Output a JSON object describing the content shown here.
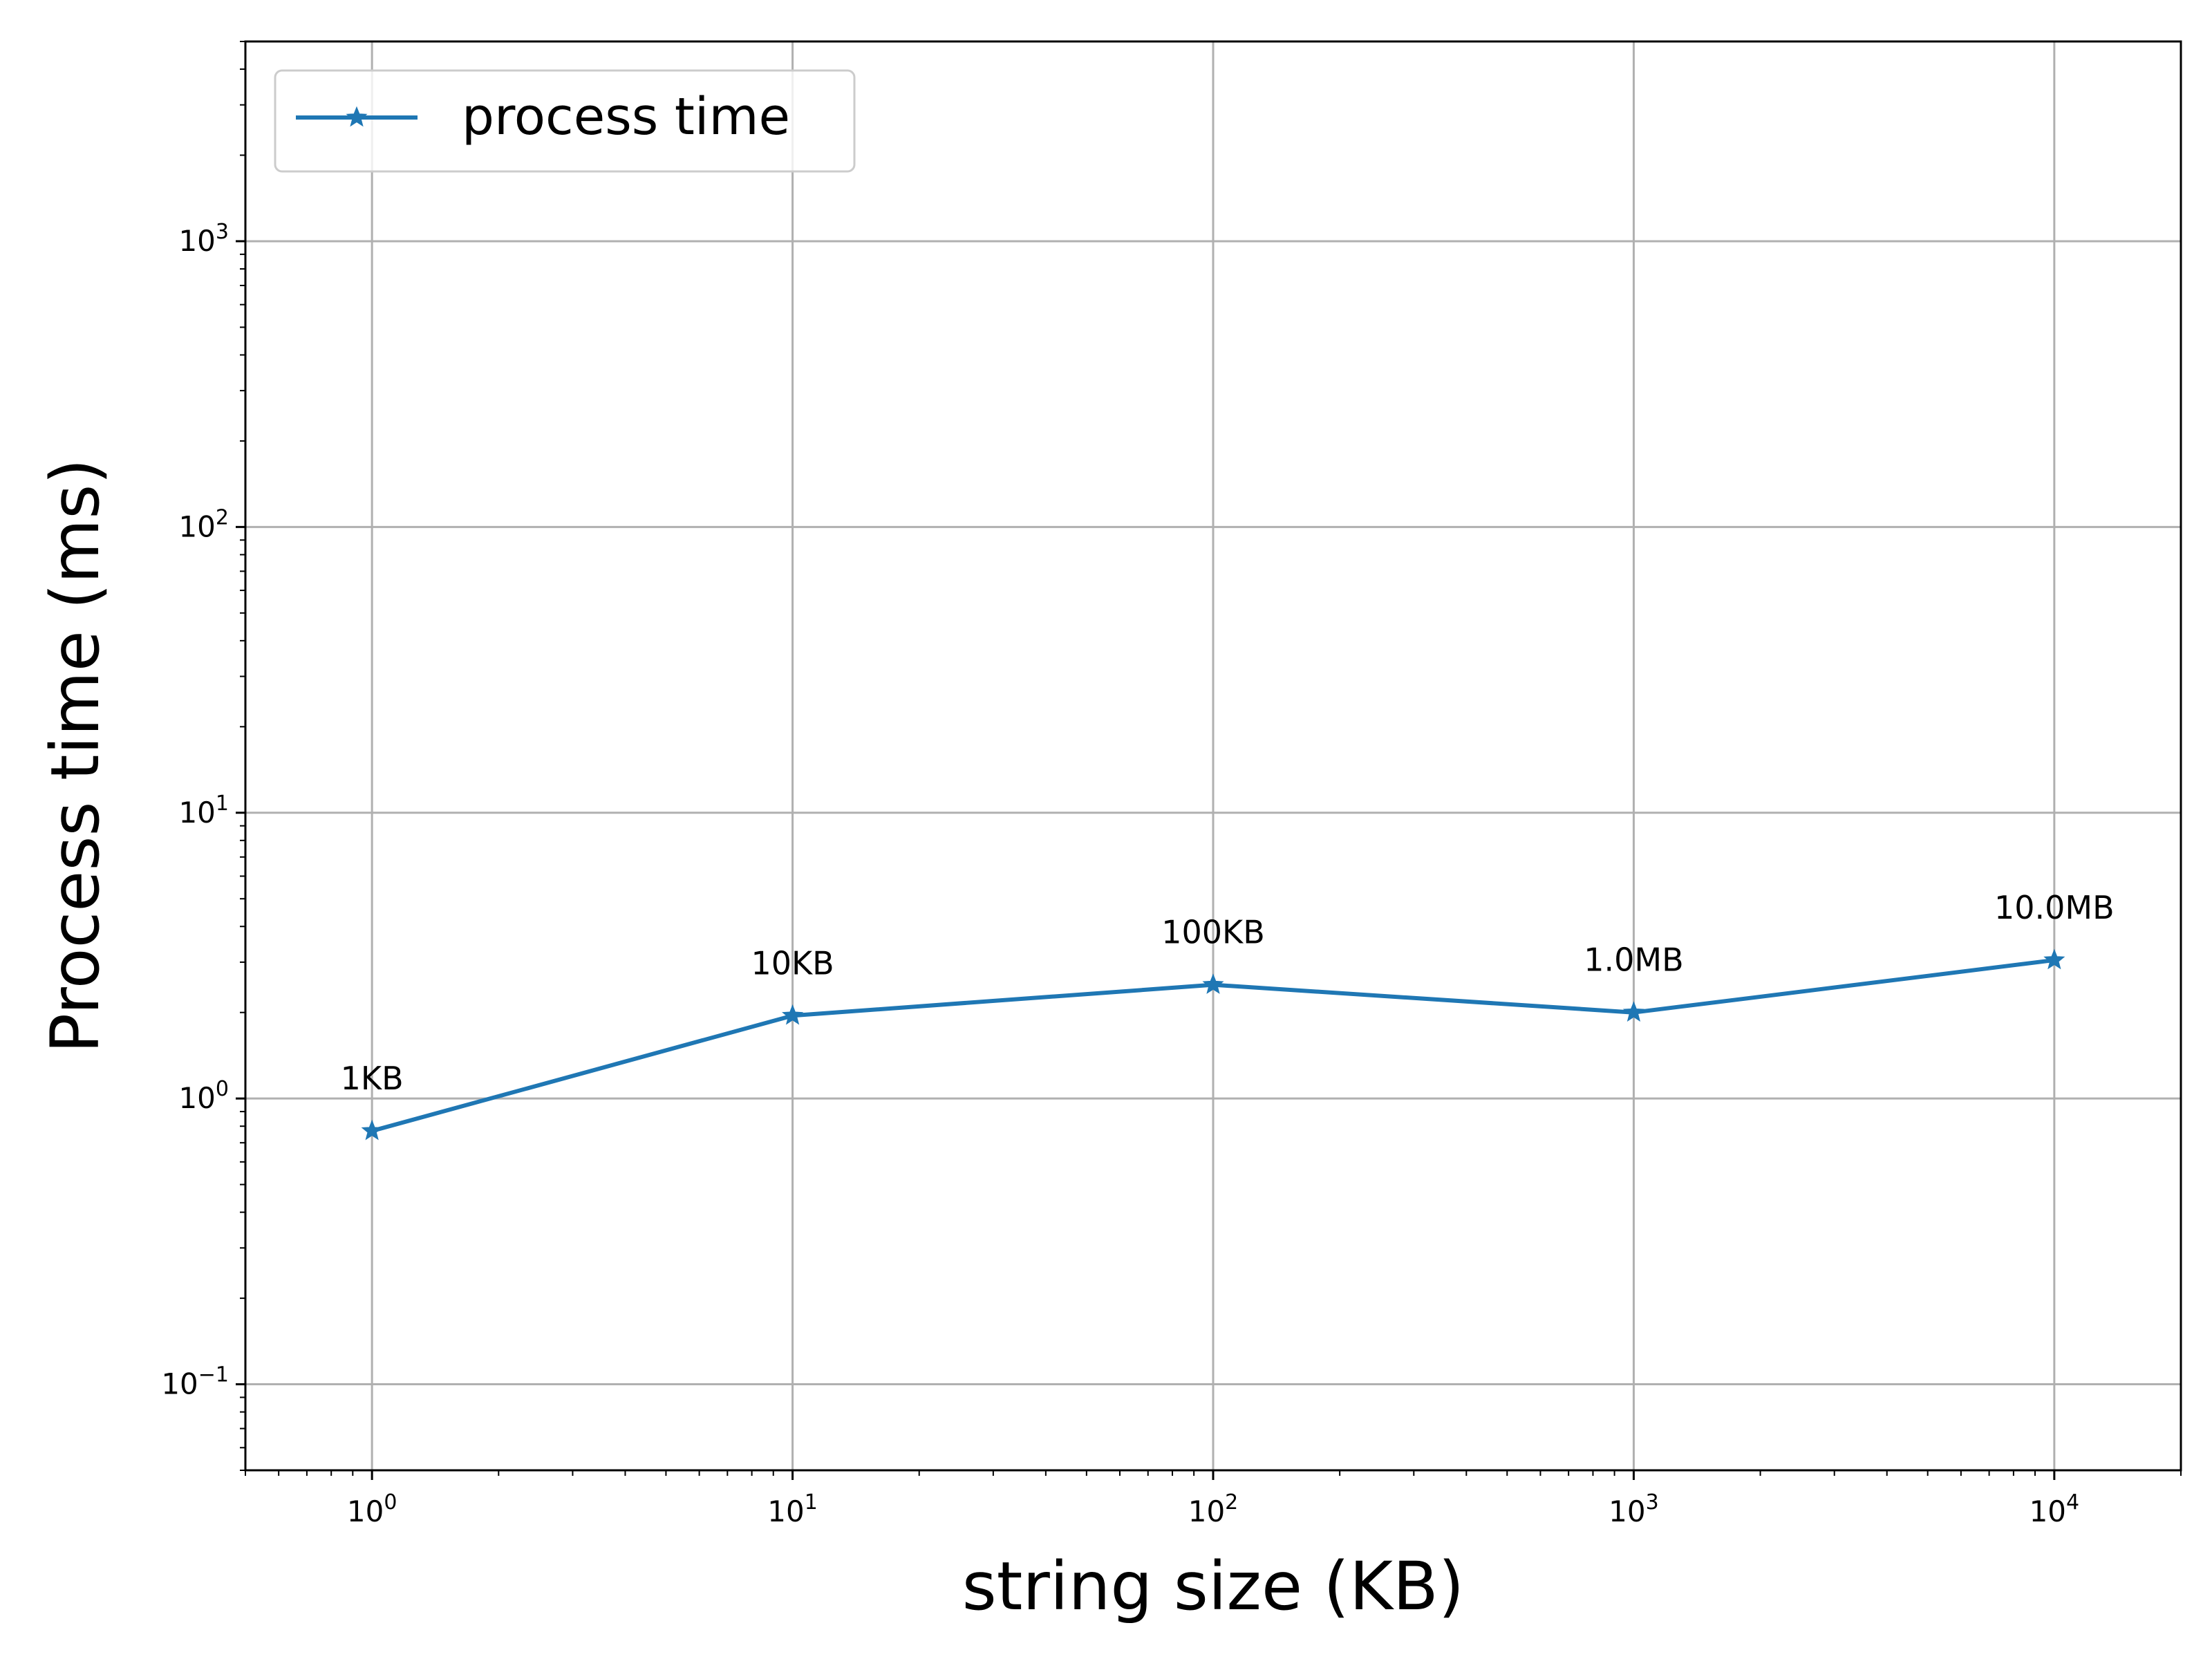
{
  "chart_data": {
    "type": "line",
    "x_scale": "log",
    "y_scale": "log",
    "xlabel": "string size (KB)",
    "ylabel": "Process time (ms)",
    "xlim": [
      0.5,
      20000
    ],
    "ylim": [
      0.05,
      5000
    ],
    "x_ticks": [
      {
        "value": 1,
        "base": "10",
        "exp": "0"
      },
      {
        "value": 10,
        "base": "10",
        "exp": "1"
      },
      {
        "value": 100,
        "base": "10",
        "exp": "2"
      },
      {
        "value": 1000,
        "base": "10",
        "exp": "3"
      },
      {
        "value": 10000,
        "base": "10",
        "exp": "4"
      }
    ],
    "y_ticks": [
      {
        "value": 0.1,
        "base": "10",
        "exp": "−1"
      },
      {
        "value": 1,
        "base": "10",
        "exp": "0"
      },
      {
        "value": 10,
        "base": "10",
        "exp": "1"
      },
      {
        "value": 100,
        "base": "10",
        "exp": "2"
      },
      {
        "value": 1000,
        "base": "10",
        "exp": "3"
      }
    ],
    "grid": true,
    "legend_position": "upper-left",
    "series": [
      {
        "name": "process time",
        "color": "#1f77b4",
        "marker": "star",
        "points": [
          {
            "x": 1,
            "y": 0.77,
            "label": "1KB"
          },
          {
            "x": 10,
            "y": 1.95,
            "label": "10KB"
          },
          {
            "x": 100,
            "y": 2.5,
            "label": "100KB"
          },
          {
            "x": 1000,
            "y": 2.0,
            "label": "1.0MB"
          },
          {
            "x": 10000,
            "y": 3.05,
            "label": "10.0MB"
          }
        ]
      }
    ]
  }
}
